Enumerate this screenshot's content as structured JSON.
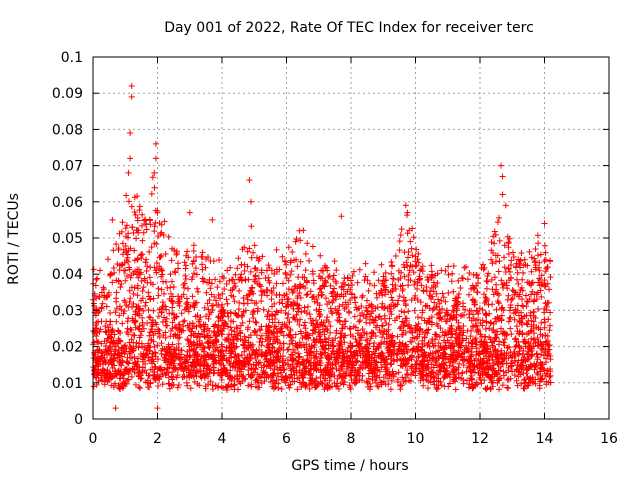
{
  "chart_data": {
    "type": "scatter",
    "title": "Day 001 of 2022, Rate Of TEC Index for receiver terc",
    "xlabel": "GPS time / hours",
    "ylabel": "ROTI / TECUs",
    "xlim": [
      0,
      16
    ],
    "ylim": [
      0,
      0.1
    ],
    "x_ticks": [
      "0",
      "2",
      "4",
      "6",
      "8",
      "10",
      "12",
      "14",
      "16"
    ],
    "y_ticks": [
      "0",
      "0.01",
      "0.02",
      "0.03",
      "0.04",
      "0.05",
      "0.06",
      "0.07",
      "0.08",
      "0.09",
      "0.1"
    ],
    "grid": true,
    "marker": "+",
    "series_color": "#ff0000",
    "data_x_range": [
      0,
      14.2
    ],
    "notable_points": [
      {
        "x": 1.2,
        "y": 0.092
      },
      {
        "x": 1.2,
        "y": 0.089
      },
      {
        "x": 1.15,
        "y": 0.079
      },
      {
        "x": 1.15,
        "y": 0.072
      },
      {
        "x": 1.1,
        "y": 0.068
      },
      {
        "x": 1.95,
        "y": 0.076
      },
      {
        "x": 1.95,
        "y": 0.072
      },
      {
        "x": 1.9,
        "y": 0.068
      },
      {
        "x": 4.85,
        "y": 0.066
      },
      {
        "x": 4.9,
        "y": 0.06
      },
      {
        "x": 9.7,
        "y": 0.059
      },
      {
        "x": 9.75,
        "y": 0.057
      },
      {
        "x": 12.65,
        "y": 0.07
      },
      {
        "x": 12.7,
        "y": 0.067
      },
      {
        "x": 12.7,
        "y": 0.062
      },
      {
        "x": 12.8,
        "y": 0.059
      },
      {
        "x": 7.7,
        "y": 0.056
      },
      {
        "x": 3.0,
        "y": 0.057
      },
      {
        "x": 3.7,
        "y": 0.055
      },
      {
        "x": 0.6,
        "y": 0.055
      },
      {
        "x": 14.0,
        "y": 0.054
      },
      {
        "x": 2.0,
        "y": 0.057
      },
      {
        "x": 6.4,
        "y": 0.052
      },
      {
        "x": 0.7,
        "y": 0.003
      },
      {
        "x": 2.0,
        "y": 0.003
      }
    ]
  }
}
